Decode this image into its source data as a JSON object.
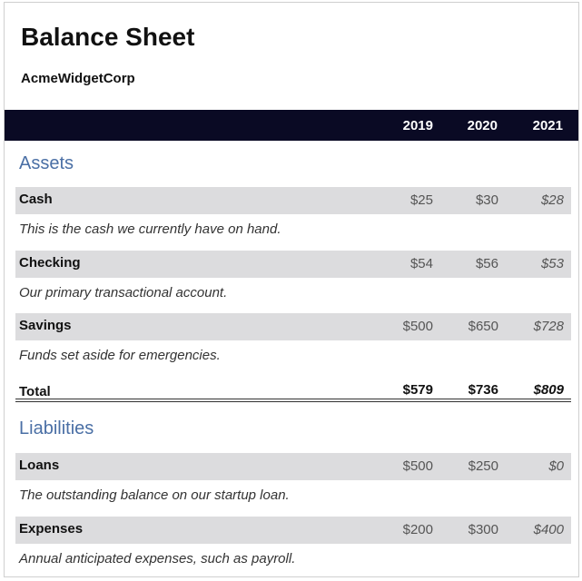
{
  "document": {
    "title": "Balance Sheet",
    "company": "AcmeWidgetCorp"
  },
  "years": [
    "2019",
    "2020",
    "2021"
  ],
  "assets": {
    "heading": "Assets",
    "items": [
      {
        "label": "Cash",
        "values": [
          "$25",
          "$30",
          "$28"
        ],
        "description": "This is the cash we currently have on hand."
      },
      {
        "label": "Checking",
        "values": [
          "$54",
          "$56",
          "$53"
        ],
        "description": "Our primary transactional account."
      },
      {
        "label": "Savings",
        "values": [
          "$500",
          "$650",
          "$728"
        ],
        "description": "Funds set aside for emergencies."
      }
    ],
    "total": {
      "label": "Total",
      "values": [
        "$579",
        "$736",
        "$809"
      ]
    }
  },
  "liabilities": {
    "heading": "Liabilities",
    "items": [
      {
        "label": "Loans",
        "values": [
          "$500",
          "$250",
          "$0"
        ],
        "description": "The outstanding balance on our startup loan."
      },
      {
        "label": "Expenses",
        "values": [
          "$200",
          "$300",
          "$400"
        ],
        "description": "Annual anticipated expenses, such as payroll."
      }
    ]
  }
}
